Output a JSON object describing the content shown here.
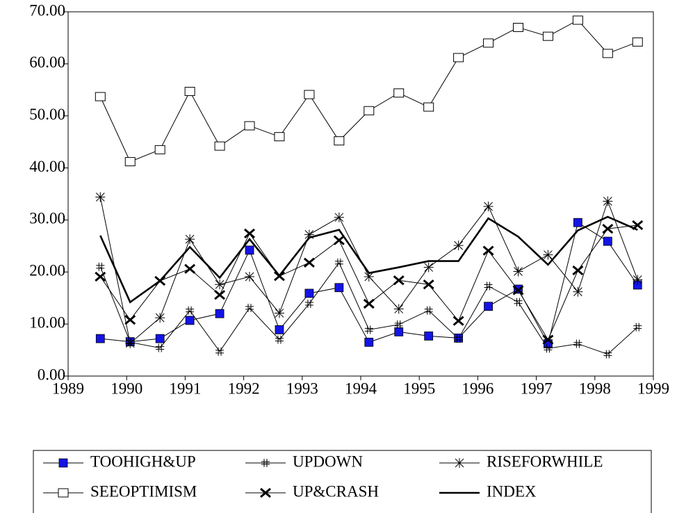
{
  "chart_data": {
    "type": "line",
    "x": [
      1989.55,
      1990.06,
      1990.57,
      1991.08,
      1991.59,
      1992.1,
      1992.61,
      1993.12,
      1993.63,
      1994.14,
      1994.65,
      1995.16,
      1995.67,
      1996.18,
      1996.69,
      1997.2,
      1997.71,
      1998.22,
      1998.73
    ],
    "series": [
      {
        "name": "TOOHIGH&UP",
        "color": "#1414e6",
        "marker": "square-filled",
        "values": [
          7.2,
          6.6,
          7.2,
          10.7,
          12.0,
          24.2,
          8.9,
          15.9,
          17.0,
          6.5,
          8.5,
          7.7,
          7.3,
          13.4,
          16.7,
          6.2,
          29.5,
          25.9,
          17.5
        ]
      },
      {
        "name": "UPDOWN",
        "color": "#000000",
        "marker": "hash",
        "values": [
          21.0,
          6.5,
          5.4,
          12.6,
          4.7,
          13.1,
          7.0,
          13.9,
          21.8,
          8.9,
          9.9,
          12.6,
          7.2,
          17.3,
          14.2,
          5.3,
          6.2,
          4.2,
          9.4
        ]
      },
      {
        "name": "RISEFORWHILE",
        "color": "#000000",
        "marker": "asterisk",
        "values": [
          34.4,
          6.3,
          11.2,
          26.3,
          17.6,
          19.1,
          12.1,
          27.2,
          30.5,
          19.1,
          12.9,
          20.9,
          25.1,
          32.6,
          20.1,
          23.3,
          16.2,
          33.6,
          18.5
        ]
      },
      {
        "name": "SEEOPTIMISM",
        "color": "#000000",
        "marker": "square-open",
        "values": [
          53.7,
          41.2,
          43.5,
          54.7,
          44.2,
          48.1,
          46.0,
          54.1,
          45.2,
          51.0,
          54.4,
          51.7,
          61.2,
          64.0,
          67.0,
          65.3,
          68.4,
          62.0,
          64.2
        ]
      },
      {
        "name": "UP&CRASH",
        "color": "#000000",
        "marker": "x-bold",
        "values": [
          19.1,
          10.8,
          18.3,
          20.6,
          15.6,
          27.4,
          19.2,
          21.8,
          26.1,
          13.9,
          18.4,
          17.6,
          10.6,
          24.1,
          16.5,
          7.0,
          20.3,
          28.3,
          29.0
        ]
      },
      {
        "name": "INDEX",
        "color": "#000000",
        "marker": "none",
        "values": [
          27.0,
          14.2,
          18.3,
          24.8,
          18.9,
          26.3,
          19.3,
          26.6,
          28.1,
          19.8,
          20.9,
          22.1,
          22.1,
          30.3,
          26.8,
          21.4,
          28.0,
          30.6,
          28.1
        ]
      }
    ],
    "xlim": [
      1989,
      1999
    ],
    "xticks": [
      1989,
      1990,
      1991,
      1992,
      1993,
      1994,
      1995,
      1996,
      1997,
      1998,
      1999
    ],
    "ylim": [
      0,
      70
    ],
    "yticks": [
      {
        "value": 0,
        "label": "0.00"
      },
      {
        "value": 10,
        "label": "10.00"
      },
      {
        "value": 20,
        "label": "20.00"
      },
      {
        "value": 30,
        "label": "30.00"
      },
      {
        "value": 40,
        "label": "40.00"
      },
      {
        "value": 50,
        "label": "50.00"
      },
      {
        "value": 60,
        "label": "60.00"
      },
      {
        "value": 70,
        "label": "70.00"
      }
    ],
    "grid": false,
    "legend": "bottom"
  }
}
